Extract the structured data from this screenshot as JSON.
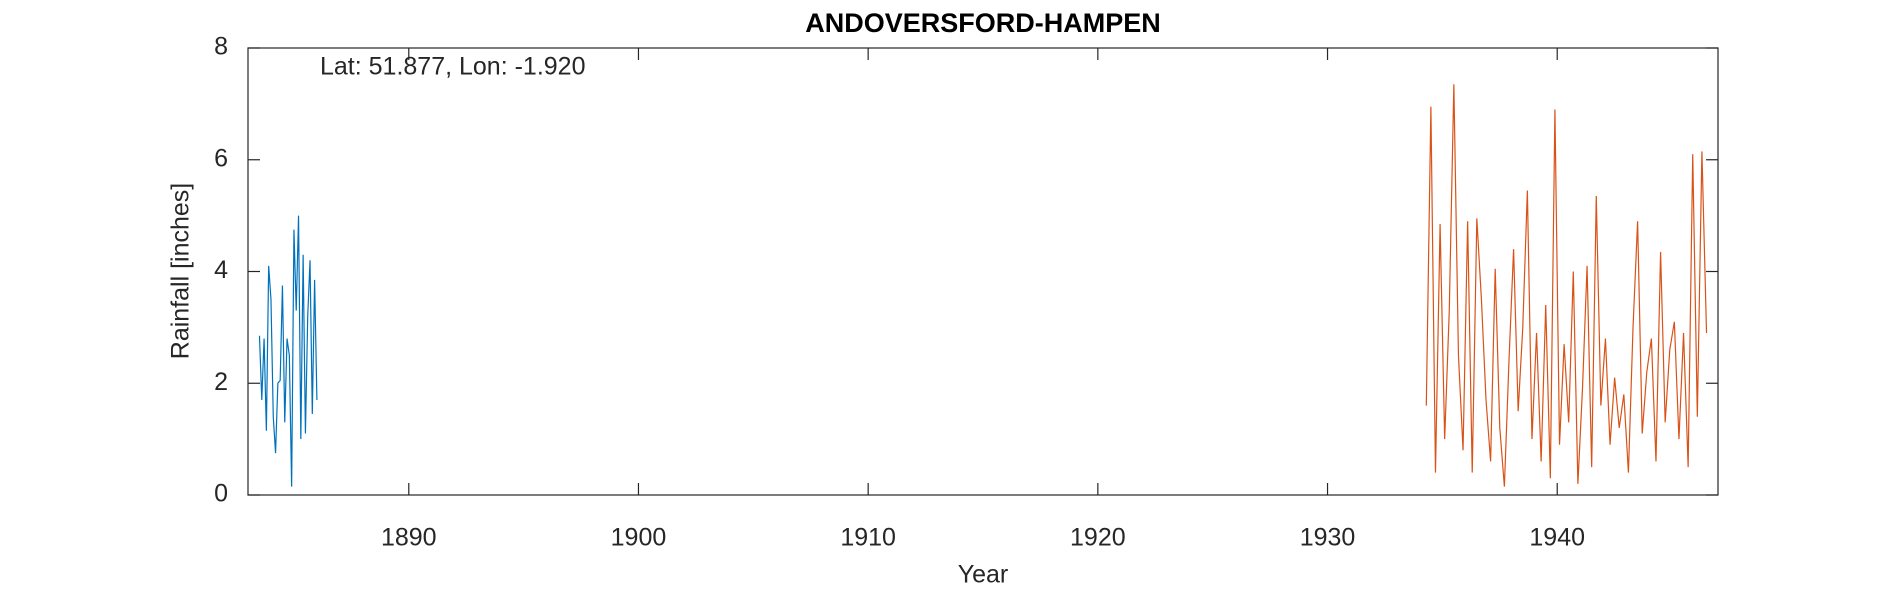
{
  "chart_data": {
    "type": "line",
    "title": "ANDOVERSFORD-HAMPEN",
    "annotation": "Lat: 51.877, Lon: -1.920",
    "xlabel": "Year",
    "ylabel": "Rainfall [inches]",
    "xlim": [
      1883,
      1947
    ],
    "xticks": [
      1890,
      1900,
      1910,
      1920,
      1930,
      1940
    ],
    "ylim": [
      0,
      8
    ],
    "yticks": [
      0,
      2,
      4,
      6,
      8
    ],
    "grid": false,
    "series": [
      {
        "color": "#0072bd",
        "x": [
          1883.5,
          1883.6,
          1883.7,
          1883.8,
          1883.9,
          1884.0,
          1884.1,
          1884.2,
          1884.3,
          1884.4,
          1884.5,
          1884.6,
          1884.7,
          1884.8,
          1884.9,
          1885.0,
          1885.1,
          1885.2,
          1885.3,
          1885.4,
          1885.5,
          1885.6,
          1885.7,
          1885.8,
          1885.9,
          1886.0
        ],
        "values": [
          2.85,
          1.7,
          2.8,
          1.15,
          4.1,
          3.5,
          1.4,
          0.75,
          2.0,
          2.05,
          3.75,
          1.3,
          2.8,
          2.5,
          0.15,
          4.75,
          3.3,
          5.0,
          1.0,
          4.3,
          1.1,
          3.2,
          4.2,
          1.45,
          3.85,
          1.7
        ]
      },
      {
        "color": "#d95319",
        "x": [
          1934.3,
          1934.5,
          1934.7,
          1934.9,
          1935.1,
          1935.3,
          1935.5,
          1935.7,
          1935.9,
          1936.1,
          1936.3,
          1936.5,
          1936.7,
          1936.9,
          1937.1,
          1937.3,
          1937.5,
          1937.7,
          1937.9,
          1938.1,
          1938.3,
          1938.5,
          1938.7,
          1938.9,
          1939.1,
          1939.3,
          1939.5,
          1939.7,
          1939.9,
          1940.1,
          1940.3,
          1940.5,
          1940.7,
          1940.9,
          1941.1,
          1941.3,
          1941.5,
          1941.7,
          1941.9,
          1942.1,
          1942.3,
          1942.5,
          1942.7,
          1942.9,
          1943.1,
          1943.3,
          1943.5,
          1943.7,
          1943.9,
          1944.1,
          1944.3,
          1944.5,
          1944.7,
          1944.9,
          1945.1,
          1945.3,
          1945.5,
          1945.7,
          1945.9,
          1946.1,
          1946.3,
          1946.5
        ],
        "values": [
          1.6,
          6.95,
          0.4,
          4.85,
          1.0,
          3.3,
          7.35,
          2.5,
          0.8,
          4.9,
          0.4,
          4.95,
          3.5,
          1.7,
          0.6,
          4.05,
          1.2,
          0.15,
          2.4,
          4.4,
          1.5,
          3.0,
          5.45,
          1.0,
          2.9,
          0.6,
          3.4,
          0.3,
          6.9,
          0.9,
          2.7,
          1.3,
          4.0,
          0.2,
          1.9,
          4.1,
          0.5,
          5.35,
          1.6,
          2.8,
          0.9,
          2.1,
          1.2,
          1.8,
          0.4,
          3.0,
          4.9,
          1.1,
          2.2,
          2.8,
          0.6,
          4.35,
          1.3,
          2.6,
          3.1,
          1.0,
          2.9,
          0.5,
          6.1,
          1.4,
          6.15,
          2.9
        ]
      }
    ]
  }
}
